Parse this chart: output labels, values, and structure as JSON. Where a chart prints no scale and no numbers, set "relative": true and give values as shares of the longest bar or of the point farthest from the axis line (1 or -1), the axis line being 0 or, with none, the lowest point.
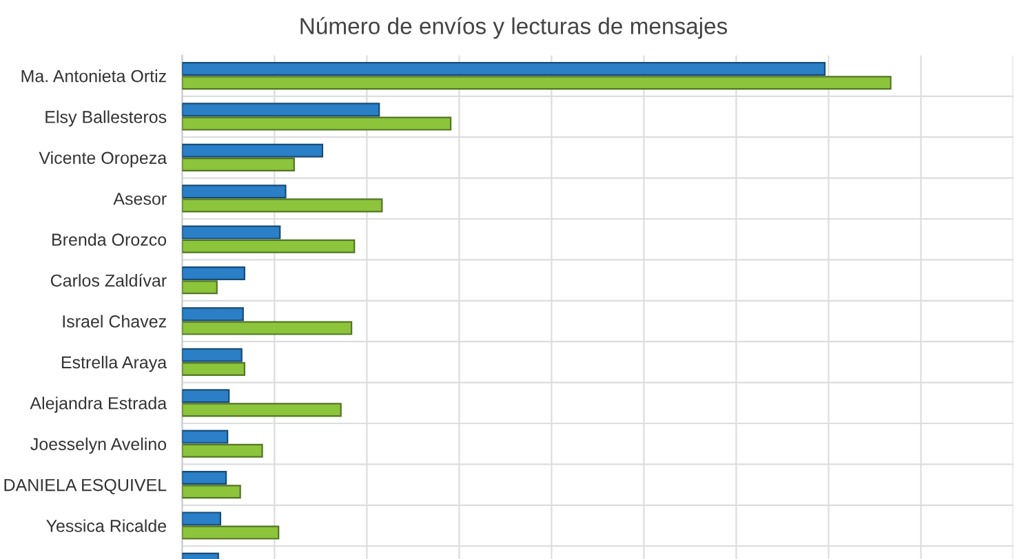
{
  "chart_data": {
    "type": "bar",
    "orientation": "horizontal",
    "relative": true,
    "title": "Número de envíos y lecturas de mensajes",
    "categories": [
      "Ma. Antonieta Ortiz",
      "Elsy Ballesteros",
      "Vicente Oropeza",
      "Asesor",
      "Brenda Orozco",
      "Carlos Zaldívar",
      "Israel Chavez",
      "Estrella Araya",
      "Alejandra Estrada",
      "Joesselyn Avelino",
      "DANIELA ESQUIVEL",
      "Yessica Ricalde",
      null
    ],
    "series": [
      {
        "color": "#2a7fc6",
        "values": [
          0.907,
          0.278,
          0.198,
          0.146,
          0.138,
          0.088,
          0.086,
          0.084,
          0.066,
          0.064,
          0.062,
          0.054,
          0.051
        ]
      },
      {
        "color": "#8cc43c",
        "values": [
          1,
          0.379,
          0.158,
          0.282,
          0.243,
          0.049,
          0.239,
          0.088,
          0.224,
          0.113,
          0.082,
          0.136,
          null
        ]
      }
    ],
    "grid": true,
    "legend": false
  }
}
